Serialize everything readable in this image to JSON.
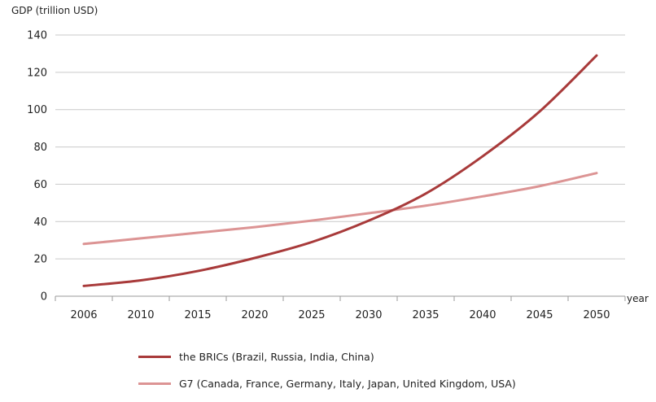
{
  "chart_data": {
    "type": "line",
    "ylabel": "GDP (trillion USD)",
    "xlabel": "year",
    "categories": [
      "2006",
      "2010",
      "2015",
      "2020",
      "2025",
      "2030",
      "2035",
      "2040",
      "2045",
      "2050"
    ],
    "y_ticks": [
      "0",
      "20",
      "40",
      "60",
      "80",
      "100",
      "120",
      "140"
    ],
    "ylim": [
      0,
      140
    ],
    "grid": "horizontal",
    "legend_position": "bottom",
    "series": [
      {
        "name": "the BRICs (Brazil, Russia, India, China)",
        "color": "#a83a3a",
        "values": [
          5.5,
          8.5,
          13.5,
          20.5,
          29,
          40.5,
          55,
          75,
          99,
          129
        ]
      },
      {
        "name": "G7 (Canada, France, Germany, Italy, Japan, United Kingdom, USA)",
        "color": "#dc9494",
        "values": [
          28,
          31,
          34,
          37,
          40.5,
          44.5,
          48.5,
          53.5,
          59,
          66
        ]
      }
    ]
  }
}
